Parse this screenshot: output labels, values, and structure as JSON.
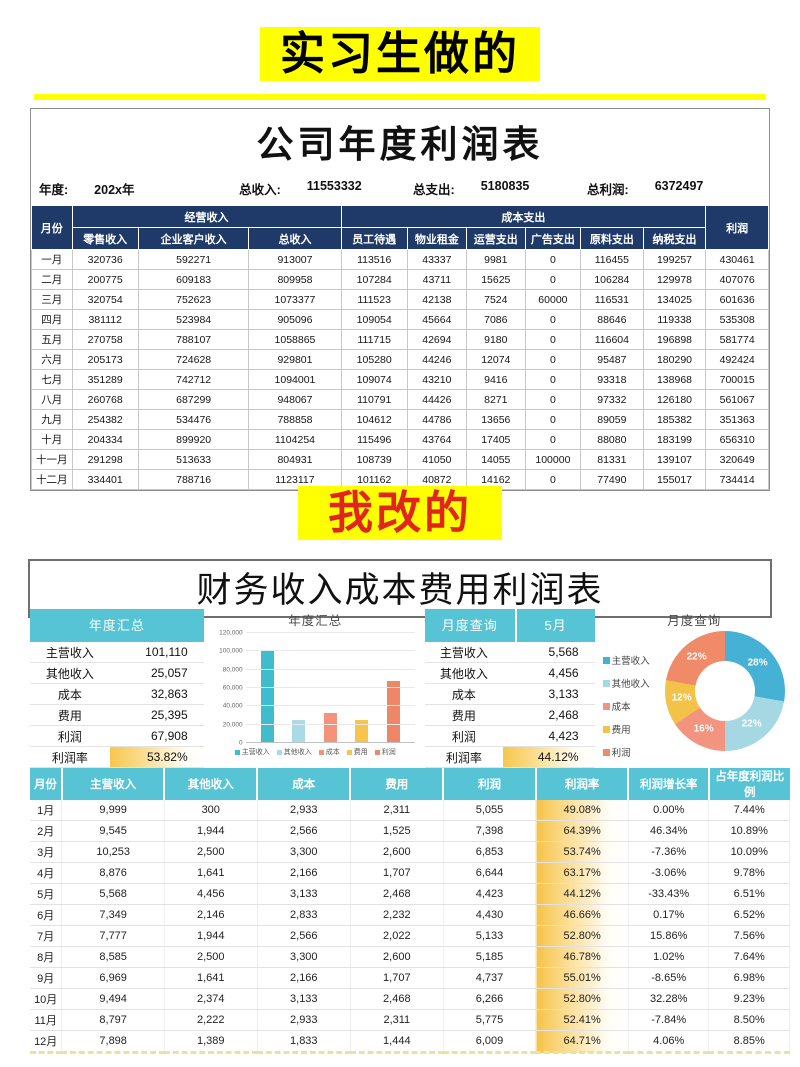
{
  "banner_top": "实习生做的",
  "banner_mid": "我改的",
  "top_sheet": {
    "title": "公司年度利润表",
    "info": [
      {
        "label": "年度:",
        "value": "202x年"
      },
      {
        "label": "总收入:",
        "value": "11553332"
      },
      {
        "label": "总支出:",
        "value": "5180835"
      },
      {
        "label": "总利润:",
        "value": "6372497"
      }
    ],
    "header": {
      "month": "月份",
      "revenue_group": "经营收入",
      "cost_group": "成本支出",
      "profit": "利润",
      "revenue_cols": [
        "零售收入",
        "企业客户收入",
        "总收入"
      ],
      "cost_cols": [
        "员工待遇",
        "物业租金",
        "运营支出",
        "广告支出",
        "原料支出",
        "纳税支出"
      ]
    },
    "rows": [
      [
        "一月",
        "320736",
        "592271",
        "913007",
        "113516",
        "43337",
        "9981",
        "0",
        "116455",
        "199257",
        "430461"
      ],
      [
        "二月",
        "200775",
        "609183",
        "809958",
        "107284",
        "43711",
        "15625",
        "0",
        "106284",
        "129978",
        "407076"
      ],
      [
        "三月",
        "320754",
        "752623",
        "1073377",
        "111523",
        "42138",
        "7524",
        "60000",
        "116531",
        "134025",
        "601636"
      ],
      [
        "四月",
        "381112",
        "523984",
        "905096",
        "109054",
        "45664",
        "7086",
        "0",
        "88646",
        "119338",
        "535308"
      ],
      [
        "五月",
        "270758",
        "788107",
        "1058865",
        "111715",
        "42694",
        "9180",
        "0",
        "116604",
        "196898",
        "581774"
      ],
      [
        "六月",
        "205173",
        "724628",
        "929801",
        "105280",
        "44246",
        "12074",
        "0",
        "95487",
        "180290",
        "492424"
      ],
      [
        "七月",
        "351289",
        "742712",
        "1094001",
        "109074",
        "43210",
        "9416",
        "0",
        "93318",
        "138968",
        "700015"
      ],
      [
        "八月",
        "260768",
        "687299",
        "948067",
        "110791",
        "44426",
        "8271",
        "0",
        "97332",
        "126180",
        "561067"
      ],
      [
        "九月",
        "254382",
        "534476",
        "788858",
        "104612",
        "44786",
        "13656",
        "0",
        "89059",
        "185382",
        "351363"
      ],
      [
        "十月",
        "204334",
        "899920",
        "1104254",
        "115496",
        "43764",
        "17405",
        "0",
        "88080",
        "183199",
        "656310"
      ],
      [
        "十一月",
        "291298",
        "513633",
        "804931",
        "108739",
        "41050",
        "14055",
        "100000",
        "81331",
        "139107",
        "320649"
      ],
      [
        "十二月",
        "334401",
        "788716",
        "1123117",
        "101162",
        "40872",
        "14162",
        "0",
        "77490",
        "155017",
        "734414"
      ]
    ]
  },
  "bottom_sheet": {
    "title": "财务收入成本费用利润表",
    "annual_panel": {
      "header": "年度汇总",
      "rows": [
        {
          "label": "主营收入",
          "value": "101,110"
        },
        {
          "label": "其他收入",
          "value": "25,057"
        },
        {
          "label": "成本",
          "value": "32,863"
        },
        {
          "label": "费用",
          "value": "25,395"
        },
        {
          "label": "利润",
          "value": "67,908"
        },
        {
          "label": "利润率",
          "value": "53.82%",
          "highlight": true
        }
      ]
    },
    "month_panel": {
      "header": "月度查询",
      "month": "5月",
      "rows": [
        {
          "label": "主营收入",
          "value": "5,568"
        },
        {
          "label": "其他收入",
          "value": "4,456"
        },
        {
          "label": "成本",
          "value": "3,133"
        },
        {
          "label": "费用",
          "value": "2,468"
        },
        {
          "label": "利润",
          "value": "4,423"
        },
        {
          "label": "利润率",
          "value": "44.12%",
          "highlight": true
        }
      ]
    },
    "table": {
      "headers": [
        "月份",
        "主营收入",
        "其他收入",
        "成本",
        "费用",
        "利润",
        "利润率",
        "利润增长率",
        "占年度利润比例"
      ],
      "rate_column_index": 6,
      "rows": [
        [
          "1月",
          "9,999",
          "300",
          "2,933",
          "2,311",
          "5,055",
          "49.08%",
          "0.00%",
          "7.44%"
        ],
        [
          "2月",
          "9,545",
          "1,944",
          "2,566",
          "1,525",
          "7,398",
          "64.39%",
          "46.34%",
          "10.89%"
        ],
        [
          "3月",
          "10,253",
          "2,500",
          "3,300",
          "2,600",
          "6,853",
          "53.74%",
          "-7.36%",
          "10.09%"
        ],
        [
          "4月",
          "8,876",
          "1,641",
          "2,166",
          "1,707",
          "6,644",
          "63.17%",
          "-3.06%",
          "9.78%"
        ],
        [
          "5月",
          "5,568",
          "4,456",
          "3,133",
          "2,468",
          "4,423",
          "44.12%",
          "-33.43%",
          "6.51%"
        ],
        [
          "6月",
          "7,349",
          "2,146",
          "2,833",
          "2,232",
          "4,430",
          "46.66%",
          "0.17%",
          "6.52%"
        ],
        [
          "7月",
          "7,777",
          "1,944",
          "2,566",
          "2,022",
          "5,133",
          "52.80%",
          "15.86%",
          "7.56%"
        ],
        [
          "8月",
          "8,585",
          "2,500",
          "3,300",
          "2,600",
          "5,185",
          "46.78%",
          "1.02%",
          "7.64%"
        ],
        [
          "9月",
          "6,969",
          "1,641",
          "2,166",
          "1,707",
          "4,737",
          "55.01%",
          "-8.65%",
          "6.98%"
        ],
        [
          "10月",
          "9,494",
          "2,374",
          "3,133",
          "2,468",
          "6,266",
          "52.80%",
          "32.28%",
          "9.23%"
        ],
        [
          "11月",
          "8,797",
          "2,222",
          "2,933",
          "2,311",
          "5,775",
          "52.41%",
          "-7.84%",
          "8.50%"
        ],
        [
          "12月",
          "7,898",
          "1,389",
          "1,833",
          "1,444",
          "6,009",
          "64.71%",
          "4.06%",
          "8.85%"
        ]
      ]
    }
  },
  "chart_data": [
    {
      "type": "bar",
      "title": "年度汇总",
      "categories": [
        "主营收入",
        "其他收入",
        "成本",
        "费用",
        "利润"
      ],
      "values": [
        101110,
        25057,
        32863,
        25395,
        67908
      ],
      "ylim": [
        0,
        120000
      ],
      "ytick_labels": [
        "0",
        "20,000",
        "40,000",
        "60,000",
        "80,000",
        "100,000",
        "120,000"
      ],
      "colors": [
        "#3fbcce",
        "#a9dbe6",
        "#f4937b",
        "#f7c54b",
        "#ee8768"
      ],
      "grid": true,
      "legend_position": "bottom"
    },
    {
      "type": "pie",
      "donut": true,
      "title": "月度查询",
      "labels": [
        "主营收入",
        "其他收入",
        "成本",
        "费用",
        "利润"
      ],
      "values": [
        5568,
        4456,
        3133,
        2468,
        4423
      ],
      "percent_labels": [
        "28%",
        "22%",
        "16%",
        "12%",
        "22%"
      ],
      "colors": [
        "#45b1d4",
        "#a5d8e2",
        "#f2947f",
        "#f2c348",
        "#f08a68"
      ],
      "legend_position": "left"
    }
  ]
}
